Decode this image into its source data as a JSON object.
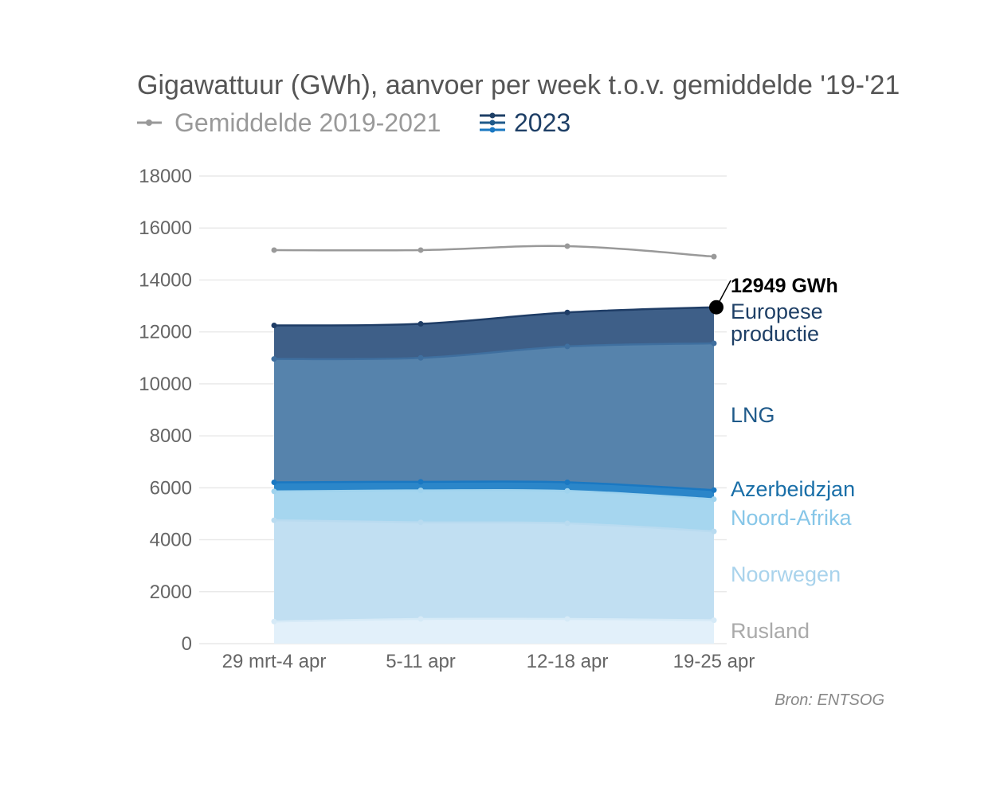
{
  "chart_data": {
    "type": "area",
    "stacked": true,
    "title": "Gigawattuur (GWh), aanvoer per week t.o.v. gemiddelde '19-'21",
    "legend": [
      {
        "label": "Gemiddelde 2019-2021",
        "color": "#999999"
      },
      {
        "label": "2023",
        "color": "#1a6fa8"
      }
    ],
    "categories": [
      "29 mrt-4 apr",
      "5-11 apr",
      "12-18 apr",
      "19-25 apr"
    ],
    "ylim": [
      0,
      18000
    ],
    "yticks": [
      0,
      2000,
      4000,
      6000,
      8000,
      10000,
      12000,
      14000,
      16000,
      18000
    ],
    "grid": true,
    "series": [
      {
        "name": "Rusland",
        "values": [
          850,
          950,
          950,
          900
        ],
        "fill": "#e2f0fa",
        "line": "#d6eaf7",
        "label_color": "#aaaaaa"
      },
      {
        "name": "Noorwegen",
        "values": [
          3900,
          3720,
          3680,
          3420
        ],
        "fill": "#c1dff2",
        "line": "#b9dbf0",
        "label_color": "#a9d3ec"
      },
      {
        "name": "Noord-Afrika",
        "values": [
          1110,
          1230,
          1250,
          1240
        ],
        "fill": "#a6d6ef",
        "line": "#9fd3ee",
        "label_color": "#86c6e8"
      },
      {
        "name": "Azerbeidzjan",
        "values": [
          350,
          330,
          330,
          350
        ],
        "fill": "#2b86c9",
        "line": "#1a78c2",
        "label_color": "#1a6fa8"
      },
      {
        "name": "LNG",
        "values": [
          4750,
          4770,
          5230,
          5650
        ],
        "fill": "#5683ac",
        "line": "#3f6f9f",
        "label_color": "#1f5a8a"
      },
      {
        "name": "Europese productie",
        "values": [
          1290,
          1310,
          1310,
          1389
        ],
        "fill": "#3e5f88",
        "line": "#1f3d66",
        "label_color": "#1e3f66"
      }
    ],
    "series_labels": {
      "Rusland": "Rusland",
      "Noorwegen": "Noorwegen",
      "Noord-Afrika": "Noord-Afrika",
      "Azerbeidzjan": "Azerbeidzjan",
      "LNG": "LNG",
      "Europese productie_line1": "Europese",
      "Europese productie_line2": "productie"
    },
    "average_line": {
      "name": "Gemiddelde 2019-2021",
      "values": [
        15150,
        15150,
        15300,
        14900
      ],
      "color": "#999999"
    },
    "annotation": {
      "text": "12949 GWh",
      "value": 12949,
      "category": "19-25 apr"
    },
    "source": "Bron: ENTSOG"
  }
}
